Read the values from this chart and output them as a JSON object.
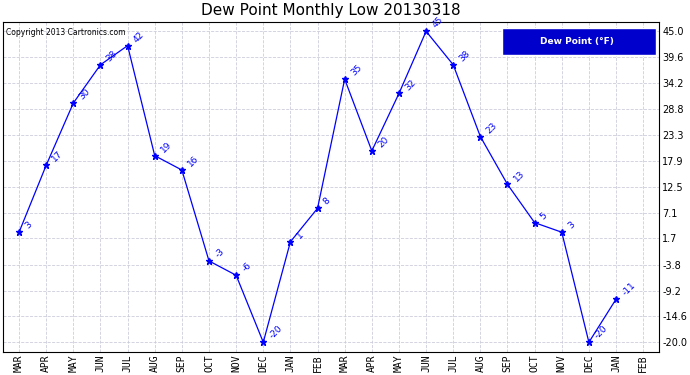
{
  "title": "Dew Point Monthly Low 20130318",
  "copyright": "Copyright 2013 Cartronics.com",
  "legend_label": "Dew Point (°F)",
  "months": [
    "MAR",
    "APR",
    "MAY",
    "JUN",
    "JUL",
    "AUG",
    "SEP",
    "OCT",
    "NOV",
    "DEC",
    "JAN",
    "FEB",
    "MAR",
    "APR",
    "MAY",
    "JUN",
    "JUL",
    "AUG",
    "SEP",
    "OCT",
    "NOV",
    "DEC",
    "JAN",
    "FEB"
  ],
  "values": [
    3,
    17,
    30,
    38,
    42,
    19,
    16,
    -3,
    -6,
    -20,
    1,
    8,
    35,
    20,
    32,
    45,
    38,
    23,
    13,
    5,
    3,
    -20,
    -11,
    null
  ],
  "yticks": [
    45.0,
    39.6,
    34.2,
    28.8,
    23.3,
    17.9,
    12.5,
    7.1,
    1.7,
    -3.8,
    -9.2,
    -14.6,
    -20.0
  ],
  "ylim": [
    -22,
    47
  ],
  "line_color": "blue",
  "marker": "*",
  "bg_color": "#ffffff",
  "grid_color": "#c8c8d8",
  "legend_bg": "#0000cc",
  "legend_fg": "white",
  "title_fontsize": 11,
  "tick_fontsize": 7,
  "annot_fontsize": 6.5
}
